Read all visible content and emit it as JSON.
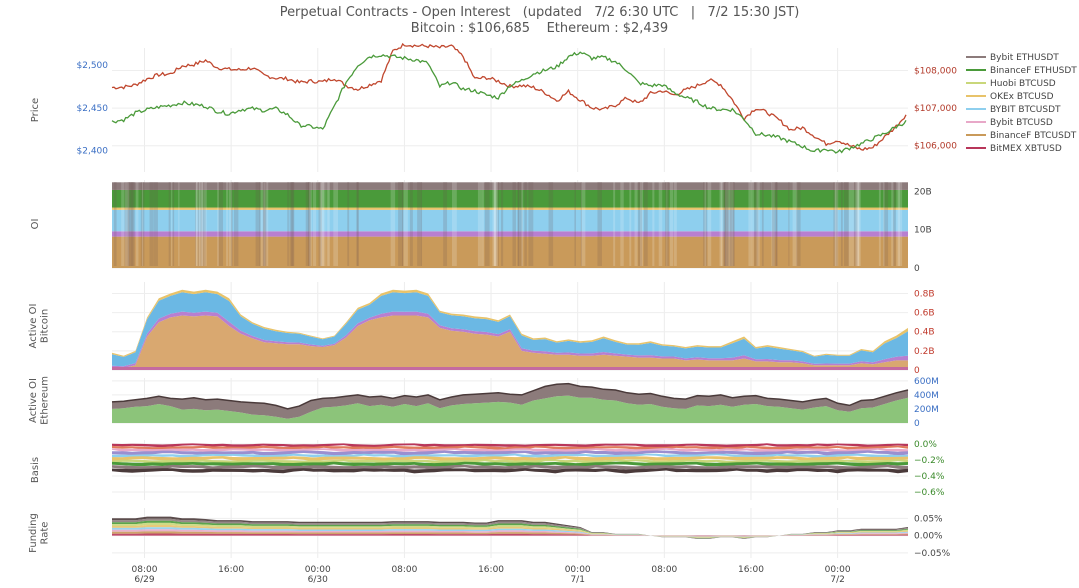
{
  "header": {
    "title": "Perpetual Contracts - Open Interest   (updated   7/2 6:30 UTC   |   7/2 15:30 JST)",
    "subtitle": "Bitcoin : $106,685    Ethereum : $2,439"
  },
  "chart_data": {
    "type": "line",
    "x": {
      "range": [
        "6/29 05:00",
        "7/2 06:30"
      ],
      "tick_labels": [
        "08:00",
        "16:00",
        "00:00",
        "08:00",
        "16:00",
        "00:00",
        "08:00",
        "16:00",
        "00:00"
      ],
      "date_labels": [
        "6/29",
        "6/30",
        "7/1",
        "7/2"
      ],
      "tick_times_hours": [
        3,
        11,
        19,
        27,
        35,
        43,
        51,
        59,
        67
      ],
      "date_label_hours": [
        3,
        19,
        43,
        67
      ],
      "total_hours": 73.5
    },
    "legend": {
      "placement": "right",
      "entries": [
        {
          "name": "Bybit ETHUSDT",
          "color": "#8c7b7b"
        },
        {
          "name": "BinanceF ETHUSDT",
          "color": "#4a9a3a"
        },
        {
          "name": "Huobi BTCUSD",
          "color": "#c9d77a"
        },
        {
          "name": "OKEx BTCUSD",
          "color": "#e8c36a"
        },
        {
          "name": "BYBIT BTCUSDT",
          "color": "#8ecfee"
        },
        {
          "name": "Bybit BTCUSD",
          "color": "#e8a8c8"
        },
        {
          "name": "BinanceF BTCUSDT",
          "color": "#c99a5a"
        },
        {
          "name": "BitMEX XBTUSD",
          "color": "#b8365a"
        }
      ]
    },
    "panels": [
      {
        "id": "price",
        "ylabel": "Price",
        "left_ticks": [
          "$2,500",
          "$2,450",
          "$2,400"
        ],
        "left_tick_values": [
          2500,
          2450,
          2400
        ],
        "left_range": [
          2375,
          2520
        ],
        "right_ticks": [
          "$108,000",
          "$107,000",
          "$106,000"
        ],
        "right_tick_values": [
          108000,
          107000,
          106000
        ],
        "right_range": [
          105300,
          108600
        ],
        "series": [
          {
            "color": "#c0472e",
            "axis": "right",
            "values": [
              107550,
              107560,
              107620,
              107780,
              107890,
              107910,
              108120,
              108160,
              108270,
              108080,
              108030,
              108020,
              108070,
              107870,
              107800,
              107780,
              107680,
              107720,
              107700,
              107800,
              107600,
              107500,
              107620,
              107740,
              108520,
              108700,
              108660,
              108650,
              108610,
              108650,
              108370,
              107780,
              107810,
              107720,
              107580,
              107600,
              107550,
              107410,
              107200,
              107440,
              107220,
              107010,
              106960,
              107080,
              107270,
              107120,
              107390,
              107460,
              107350,
              107480,
              107600,
              107750,
              107630,
              107220,
              106730,
              107000,
              106880,
              106680,
              106420,
              106480,
              106260,
              106050,
              106150,
              106000,
              105900,
              105950,
              106230,
              106520,
              106890
            ]
          },
          {
            "color": "#4a9a3a",
            "axis": "left",
            "values": [
              2434,
              2436,
              2444,
              2448,
              2451,
              2453,
              2456,
              2454,
              2452,
              2446,
              2443,
              2448,
              2449,
              2447,
              2449,
              2442,
              2430,
              2428,
              2425,
              2452,
              2480,
              2500,
              2510,
              2512,
              2510,
              2508,
              2506,
              2502,
              2475,
              2480,
              2472,
              2470,
              2465,
              2462,
              2476,
              2482,
              2490,
              2494,
              2498,
              2510,
              2515,
              2508,
              2509,
              2504,
              2494,
              2479,
              2476,
              2477,
              2468,
              2462,
              2457,
              2450,
              2448,
              2448,
              2437,
              2420,
              2418,
              2415,
              2410,
              2405,
              2399,
              2402,
              2398,
              2403,
              2408,
              2414,
              2420,
              2428,
              2435
            ]
          }
        ]
      },
      {
        "id": "oi",
        "ylabel": "OI",
        "right_ticks": [
          "20B",
          "10B",
          "0"
        ],
        "right_tick_values": [
          20,
          10,
          0
        ],
        "right_range": [
          0,
          23
        ],
        "stack": [
          {
            "color": "#c99a5a",
            "value": 8.2
          },
          {
            "color": "#b87fd0",
            "value": 1.4
          },
          {
            "color": "#8ecfee",
            "value": 5.6
          },
          {
            "color": "#e8c36a",
            "value": 0.6
          },
          {
            "color": "#4a9a3a",
            "value": 4.6
          },
          {
            "color": "#8c7b7b",
            "value": 2.0
          }
        ]
      },
      {
        "id": "active-oi-btc",
        "ylabel": "Active OI",
        "ylabel2": "Bitcoin",
        "right_ticks": [
          "0.8B",
          "0.6B",
          "0.4B",
          "0.2B",
          "0"
        ],
        "right_tick_values": [
          0.8,
          0.6,
          0.4,
          0.2,
          0
        ],
        "right_range": [
          0,
          0.92
        ],
        "tick_color": "#c0392b",
        "totals": [
          0.18,
          0.15,
          0.2,
          0.55,
          0.75,
          0.8,
          0.84,
          0.82,
          0.84,
          0.82,
          0.75,
          0.58,
          0.5,
          0.45,
          0.42,
          0.4,
          0.39,
          0.36,
          0.33,
          0.36,
          0.5,
          0.65,
          0.7,
          0.8,
          0.84,
          0.83,
          0.84,
          0.8,
          0.62,
          0.59,
          0.58,
          0.56,
          0.55,
          0.52,
          0.58,
          0.38,
          0.33,
          0.34,
          0.3,
          0.32,
          0.3,
          0.31,
          0.35,
          0.31,
          0.28,
          0.28,
          0.3,
          0.27,
          0.26,
          0.24,
          0.26,
          0.25,
          0.25,
          0.3,
          0.35,
          0.24,
          0.26,
          0.24,
          0.22,
          0.2,
          0.15,
          0.17,
          0.16,
          0.16,
          0.22,
          0.2,
          0.3,
          0.36,
          0.44
        ],
        "bottom": [
          0.02,
          0.02,
          0.05,
          0.35,
          0.5,
          0.55,
          0.57,
          0.56,
          0.57,
          0.56,
          0.46,
          0.38,
          0.33,
          0.29,
          0.28,
          0.27,
          0.27,
          0.25,
          0.24,
          0.26,
          0.34,
          0.46,
          0.52,
          0.55,
          0.57,
          0.57,
          0.57,
          0.55,
          0.44,
          0.41,
          0.4,
          0.38,
          0.37,
          0.35,
          0.4,
          0.2,
          0.18,
          0.17,
          0.16,
          0.16,
          0.15,
          0.15,
          0.16,
          0.15,
          0.14,
          0.13,
          0.13,
          0.12,
          0.12,
          0.1,
          0.11,
          0.1,
          0.1,
          0.1,
          0.12,
          0.09,
          0.09,
          0.08,
          0.08,
          0.07,
          0.05,
          0.05,
          0.05,
          0.05,
          0.07,
          0.06,
          0.08,
          0.1,
          0.1
        ]
      },
      {
        "id": "active-oi-eth",
        "ylabel": "Active OI",
        "ylabel2": "Ethereum",
        "right_ticks": [
          "600M",
          "400M",
          "200M",
          "0"
        ],
        "right_tick_values": [
          600,
          400,
          200,
          0
        ],
        "right_range": [
          0,
          640
        ],
        "tick_color": "#3b6fc4",
        "totals": [
          300,
          310,
          330,
          350,
          380,
          350,
          340,
          360,
          330,
          340,
          320,
          300,
          290,
          280,
          250,
          200,
          240,
          320,
          350,
          360,
          380,
          400,
          370,
          380,
          350,
          390,
          370,
          400,
          330,
          370,
          400,
          410,
          420,
          430,
          410,
          400,
          460,
          520,
          550,
          560,
          520,
          510,
          480,
          470,
          430,
          410,
          420,
          380,
          350,
          340,
          390,
          380,
          400,
          360,
          380,
          390,
          350,
          340,
          320,
          300,
          330,
          350,
          280,
          250,
          320,
          330,
          380,
          430,
          470
        ],
        "green": [
          200,
          210,
          230,
          240,
          270,
          240,
          190,
          200,
          180,
          190,
          170,
          150,
          120,
          110,
          90,
          60,
          90,
          160,
          220,
          230,
          250,
          280,
          240,
          260,
          230,
          270,
          240,
          280,
          210,
          250,
          270,
          280,
          290,
          300,
          290,
          260,
          320,
          350,
          380,
          390,
          360,
          360,
          330,
          320,
          280,
          260,
          270,
          230,
          210,
          200,
          250,
          240,
          260,
          230,
          260,
          270,
          240,
          230,
          210,
          190,
          220,
          240,
          180,
          160,
          210,
          220,
          270,
          320,
          360
        ]
      },
      {
        "id": "basis",
        "ylabel": "Basis",
        "right_ticks": [
          "0.0%",
          "−0.2%",
          "−0.4%",
          "−0.6%"
        ],
        "right_tick_values": [
          0,
          -0.2,
          -0.4,
          -0.6
        ],
        "right_range": [
          -0.7,
          0.05
        ],
        "tick_color": "#3a8a2a",
        "band_colors": [
          "#b8365a",
          "#e07b5a",
          "#e8a8c8",
          "#9b8fd0",
          "#8ecfee",
          "#e8c36a",
          "#c9d77a",
          "#4a9a3a",
          "#8c7b7b",
          "#4a3a3a"
        ],
        "band_edges": [
          0.0,
          -0.03,
          -0.06,
          -0.09,
          -0.13,
          -0.16,
          -0.2,
          -0.23,
          -0.27,
          -0.31,
          -0.35
        ]
      },
      {
        "id": "funding-rate",
        "ylabel": "Funding",
        "ylabel2": "Rate",
        "right_ticks": [
          "0.05%",
          "0.00%",
          "−0.05%"
        ],
        "right_tick_values": [
          0.05,
          0,
          -0.05
        ],
        "right_range": [
          -0.065,
          0.08
        ],
        "band_colors": [
          "#4a3a3a",
          "#8c7b7b",
          "#4a9a3a",
          "#c9d77a",
          "#e8c36a",
          "#8ecfee",
          "#e8a8c8",
          "#c99a5a",
          "#b8365a"
        ],
        "tops": [
          0.05,
          0.05,
          0.05,
          0.055,
          0.055,
          0.055,
          0.05,
          0.05,
          0.048,
          0.045,
          0.045,
          0.045,
          0.042,
          0.042,
          0.042,
          0.042,
          0.04,
          0.04,
          0.04,
          0.04,
          0.04,
          0.04,
          0.04,
          0.04,
          0.042,
          0.042,
          0.042,
          0.042,
          0.04,
          0.04,
          0.04,
          0.038,
          0.038,
          0.045,
          0.045,
          0.045,
          0.04,
          0.04,
          0.035,
          0.03,
          0.025,
          0.01,
          0.01,
          0.005,
          0.005,
          0.005,
          0.0,
          -0.005,
          -0.005,
          -0.005,
          -0.01,
          -0.01,
          -0.005,
          -0.005,
          -0.01,
          -0.005,
          -0.005,
          0.0,
          0.005,
          0.005,
          0.01,
          0.01,
          0.015,
          0.015,
          0.02,
          0.02,
          0.02,
          0.02,
          0.025
        ]
      }
    ]
  }
}
